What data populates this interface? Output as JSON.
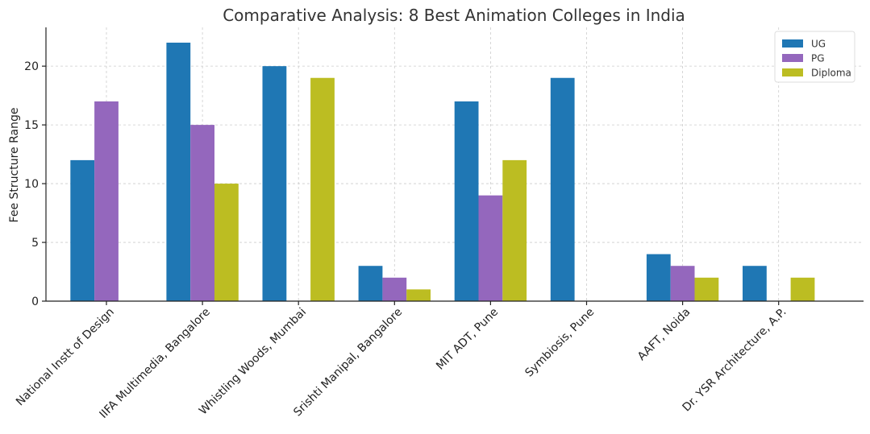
{
  "chart_data": {
    "type": "bar",
    "title": "Comparative Analysis: 8 Best Animation Colleges in India",
    "xlabel": "",
    "ylabel": "Fee Structure Range",
    "ylim": [
      0,
      23.3
    ],
    "yticks": [
      0,
      5,
      10,
      15,
      20
    ],
    "grid": true,
    "legend_position": "top-right",
    "categories": [
      "National Instt of Design",
      "IIFA Multimedia, Bangalore",
      "Whistling Woods, Mumbai",
      "Srishti Manipal, Bangalore",
      "MIT ADT, Pune",
      "Symbiosis, Pune",
      "AAFT, Noida",
      "Dr. YSR Architecture, A.P."
    ],
    "series": [
      {
        "name": "UG",
        "color": "#1f77b4",
        "values": [
          12,
          22,
          20,
          3,
          17,
          19,
          4,
          3
        ]
      },
      {
        "name": "PG",
        "color": "#9467bd",
        "values": [
          17,
          15,
          0,
          2,
          9,
          0,
          3,
          0
        ]
      },
      {
        "name": "Diploma",
        "color": "#bcbd22",
        "values": [
          0,
          10,
          19,
          1,
          12,
          0,
          2,
          2
        ]
      }
    ]
  }
}
